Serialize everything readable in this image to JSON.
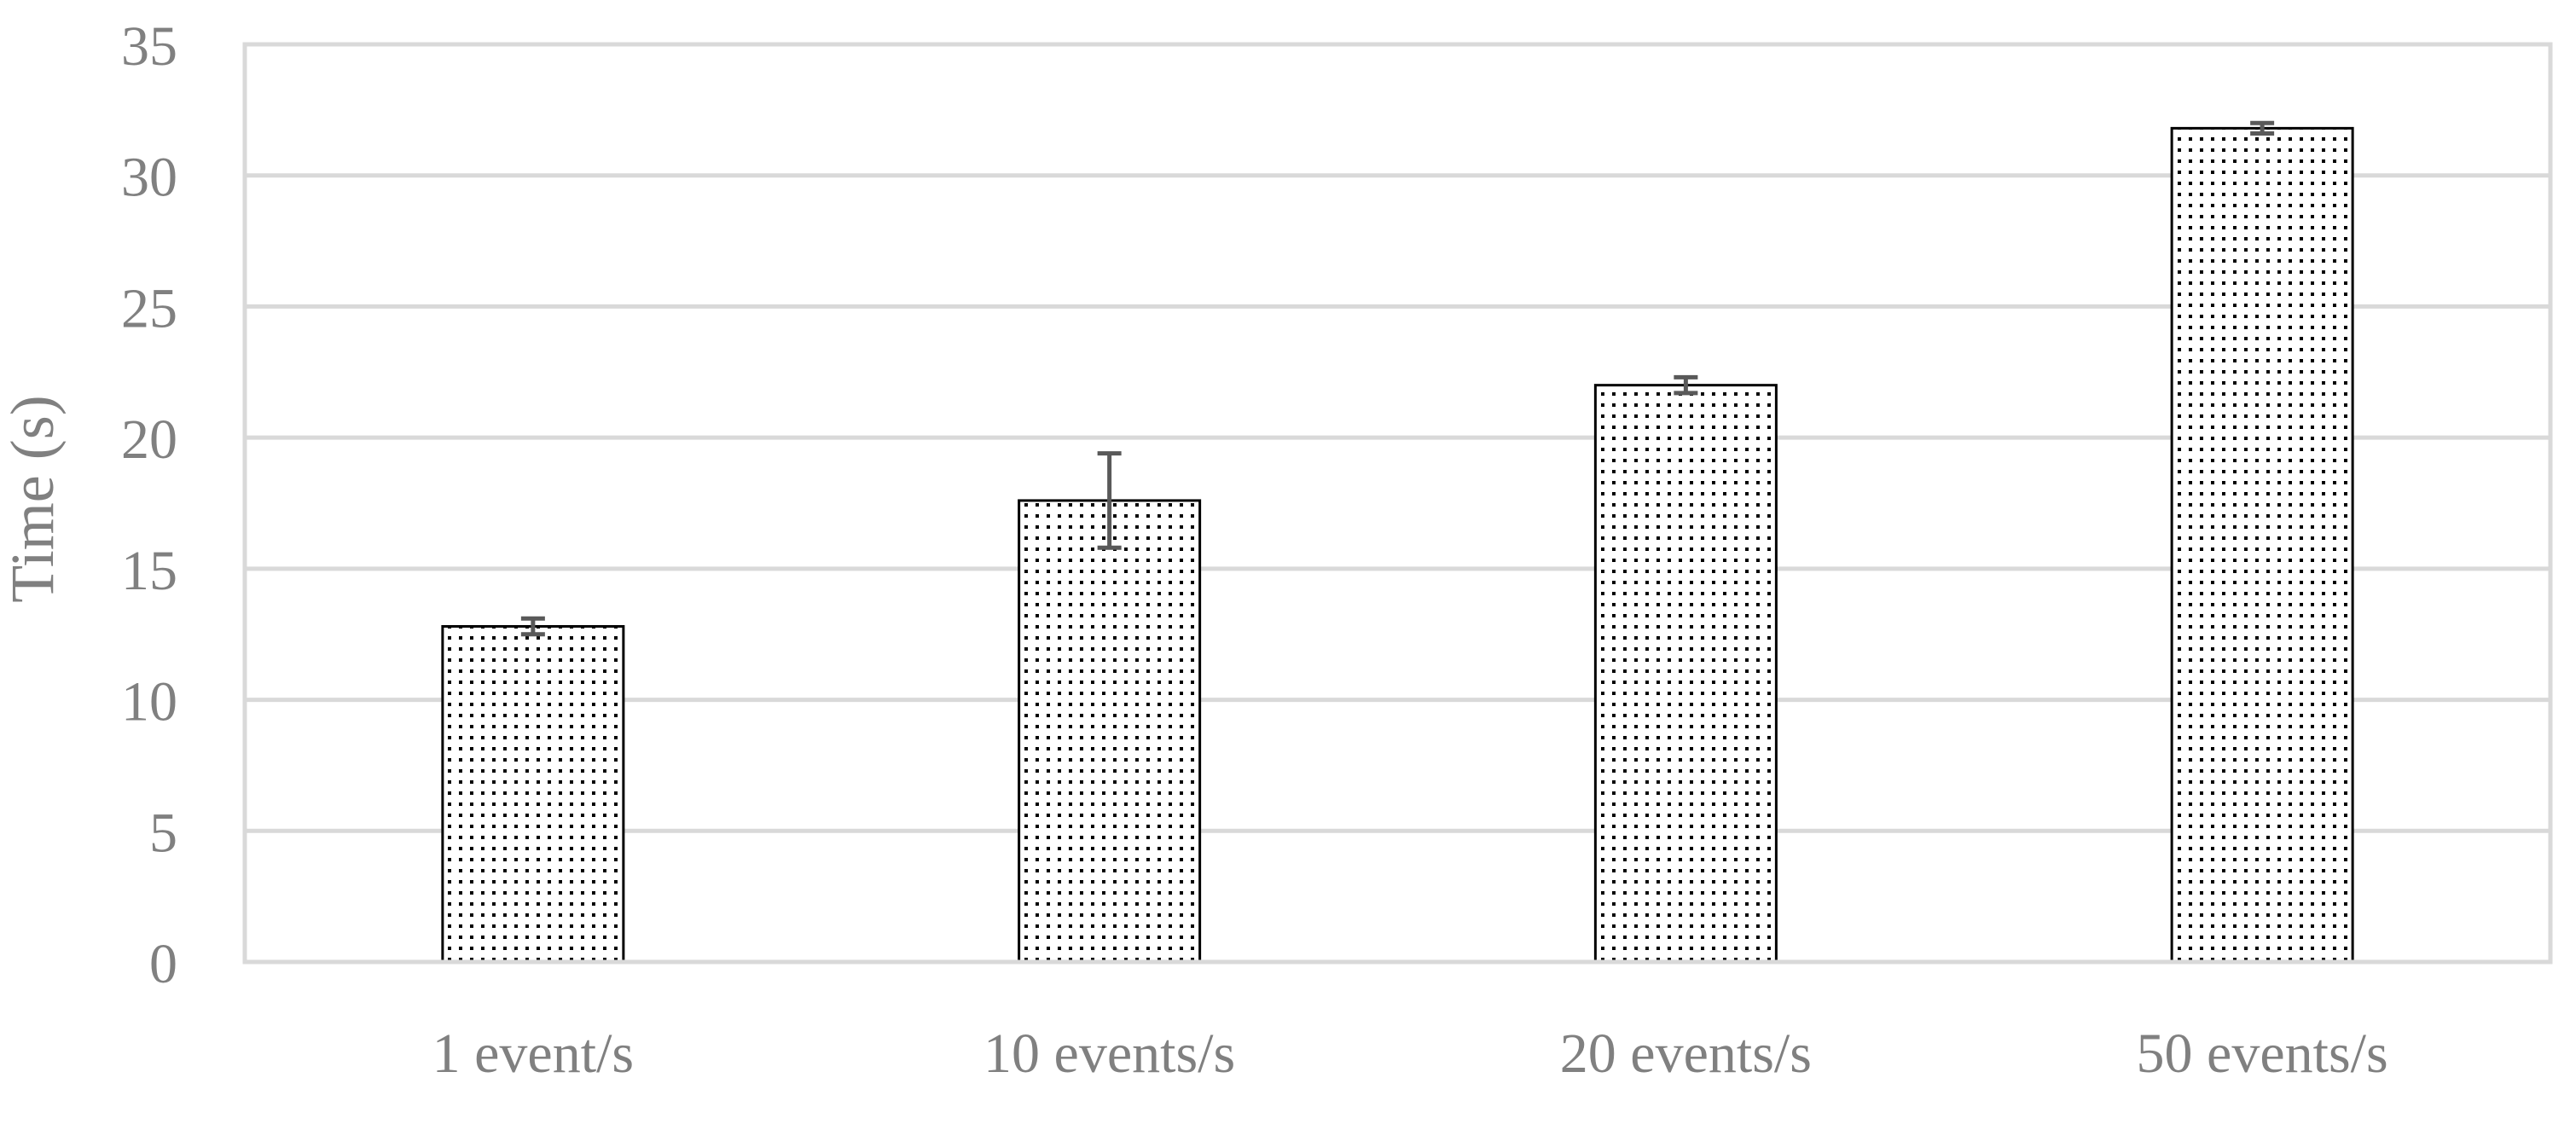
{
  "chart_data": {
    "type": "bar",
    "categories": [
      "1 event/s",
      "10 events/s",
      "20 events/s",
      "50 events/s"
    ],
    "values": [
      12.8,
      17.6,
      22.0,
      31.8
    ],
    "errors": [
      0.3,
      1.8,
      0.3,
      0.2
    ],
    "xlabel": "",
    "ylabel": "Time (s)",
    "ylim": [
      0,
      35
    ],
    "yticks": [
      0,
      5,
      10,
      15,
      20,
      25,
      30,
      35
    ],
    "grid": true,
    "legend": "none",
    "bar_fill": "#ffffff",
    "bar_pattern": "dotted",
    "dot_color": "#000000",
    "bar_stroke": "#000000",
    "error_color": "#595959",
    "grid_color": "#d9d9d9",
    "text_color": "#808080"
  }
}
